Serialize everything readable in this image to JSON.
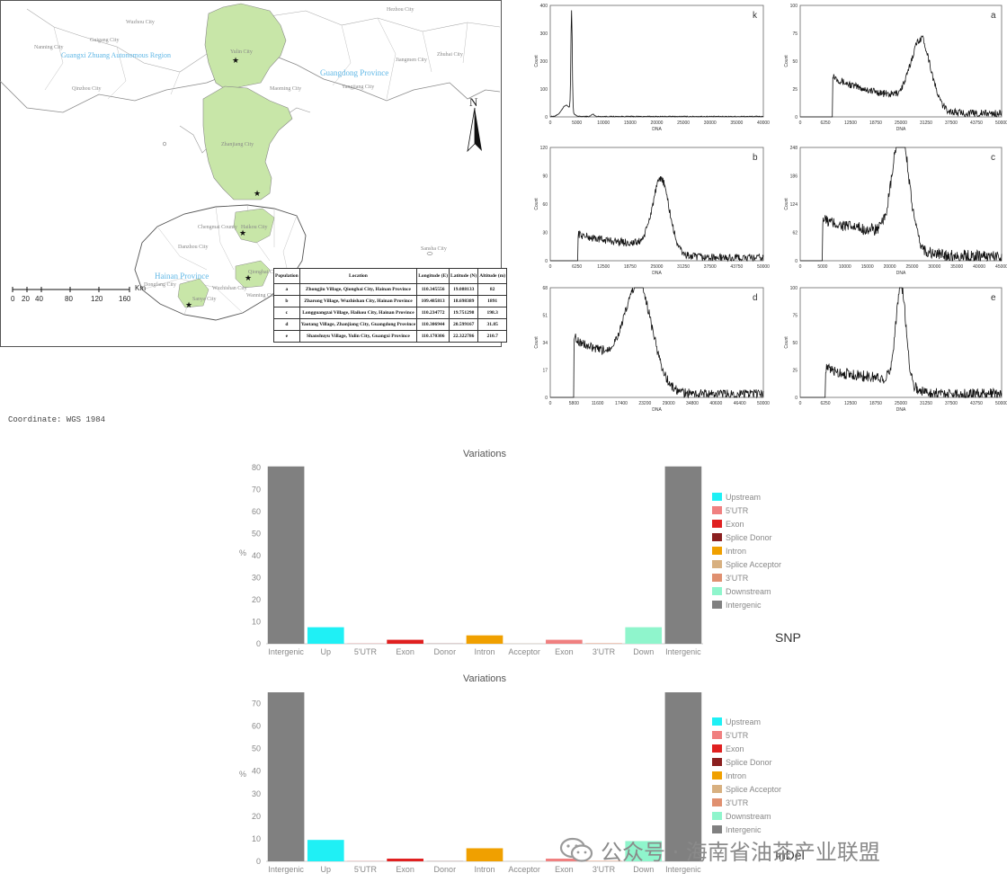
{
  "map": {
    "north_label": "N",
    "coordinate_note": "Coordinate: WGS 1984",
    "scale_unit": "Km",
    "scale_ticks": [
      "0",
      "20",
      "40",
      "80",
      "120",
      "160"
    ],
    "region_labels": [
      "Guangxi Zhuang Autonomous Region",
      "Guangdong Province",
      "Hainan Province"
    ],
    "city_labels": [
      "Wuzhou City",
      "Guigang City",
      "Hezhou City",
      "Nanning City",
      "Qinzhou City",
      "Yulin City",
      "Maoming City",
      "Zhanjiang City",
      "Haikou City",
      "Zhuhai City",
      "Jiangmen City",
      "Yangjiang City",
      "Danzhou City",
      "Sanya City",
      "Wanning City",
      "Qionghai City",
      "Chengmai County",
      "Dongfang City",
      "Wuzhishan City",
      "Sansha City"
    ],
    "table": {
      "headers": [
        "Population",
        "Location",
        "Longitude (E)",
        "Latitude (N)",
        "Altitude (m)"
      ],
      "rows": [
        [
          "a",
          "Zhongjiu Village, Qionghai City, Hainan Province",
          "110.345556",
          "19.088133",
          "82"
        ],
        [
          "b",
          "Zharong Village, Wuzhishan City, Hainan Province",
          "109.485813",
          "18.698389",
          "1891"
        ],
        [
          "c",
          "Longguangzai Village, Haikou City, Hainan Province",
          "110.234772",
          "19.751298",
          "198.3"
        ],
        [
          "d",
          "Yaotang Village, Zhanjiang City, Guangdong Province",
          "110.306944",
          "20.599167",
          "31.85"
        ],
        [
          "e",
          "Shanshuyu Village, Yulin City, Guangxi Province",
          "110.170306",
          "22.322786",
          "210.7"
        ]
      ]
    },
    "site_markers": [
      "a",
      "b",
      "c",
      "d",
      "e"
    ],
    "colors": {
      "land": "#c8e6a8",
      "border": "#777777",
      "water_label": "#5fb7e6"
    }
  },
  "chart_data": [
    {
      "type": "line",
      "id": "k",
      "panel_label": "k",
      "xlabel": "DNA",
      "ylabel": "Count",
      "xlim": [
        0,
        40000
      ],
      "ylim": [
        0,
        400
      ],
      "xticks": [
        "0",
        "5000",
        "10000",
        "15000",
        "20000",
        "25000",
        "30000",
        "35000",
        "40000"
      ],
      "yticks": [
        "0",
        "100",
        "200",
        "300",
        "400"
      ],
      "peaks": [
        {
          "x": 3000,
          "y": 40,
          "w": 1200
        },
        {
          "x": 4000,
          "y": 360,
          "w": 180
        },
        {
          "x": 8000,
          "y": 8,
          "w": 400
        }
      ]
    },
    {
      "type": "line",
      "id": "a",
      "panel_label": "a",
      "xlabel": "DNA",
      "ylabel": "Count",
      "xlim": [
        0,
        50000
      ],
      "ylim": [
        0,
        100
      ],
      "xticks": [
        "0",
        "6250",
        "12500",
        "18750",
        "25000",
        "31250",
        "37500",
        "43750",
        "50000"
      ],
      "yticks": [
        "0",
        "25",
        "50",
        "75",
        "100"
      ],
      "start": 8000,
      "end": 50000,
      "curve": {
        "plateau": 40,
        "plateau_end_drop": 15,
        "peak_x": 30000,
        "peak_y": 55,
        "peak_w": 3500,
        "tail": 3
      }
    },
    {
      "type": "line",
      "id": "b",
      "panel_label": "b",
      "xlabel": "DNA",
      "ylabel": "Count",
      "xlim": [
        0,
        50000
      ],
      "ylim": [
        0,
        120
      ],
      "xticks": [
        "0",
        "6250",
        "12500",
        "18750",
        "25000",
        "31250",
        "37500",
        "43750",
        "50000"
      ],
      "yticks": [
        "0",
        "30",
        "60",
        "90",
        "120"
      ],
      "start": 6500,
      "end": 50000,
      "curve": {
        "plateau": 30,
        "plateau_end_drop": 16,
        "peak_x": 26000,
        "peak_y": 70,
        "peak_w": 2800,
        "tail": 3
      }
    },
    {
      "type": "line",
      "id": "c",
      "panel_label": "c",
      "xlabel": "DNA",
      "ylabel": "Count",
      "xlim": [
        0,
        45000
      ],
      "ylim": [
        0,
        248
      ],
      "xticks": [
        "0",
        "5000",
        "10000",
        "15000",
        "20000",
        "25000",
        "30000",
        "35000",
        "40000",
        "45000"
      ],
      "yticks": [
        "0",
        "62",
        "124",
        "186",
        "248"
      ],
      "start": 5000,
      "end": 45000,
      "curve": {
        "plateau": 95,
        "plateau_end_drop": 60,
        "peak_x": 22500,
        "peak_y": 225,
        "peak_w": 2600,
        "tail": 10
      }
    },
    {
      "type": "line",
      "id": "d",
      "panel_label": "d",
      "xlabel": "DNA",
      "ylabel": "Count",
      "xlim": [
        0,
        50000
      ],
      "ylim": [
        0,
        68
      ],
      "xticks": [
        "0",
        "5800",
        "11600",
        "17400",
        "23200",
        "29000",
        "34800",
        "40600",
        "46400",
        "50000"
      ],
      "yticks": [
        "0",
        "17",
        "34",
        "51",
        "68"
      ],
      "start": 5500,
      "end": 50000,
      "curve": {
        "plateau": 40,
        "plateau_end_drop": 22,
        "peak_x": 21000,
        "peak_y": 50,
        "peak_w": 4500,
        "tail": 2
      }
    },
    {
      "type": "line",
      "id": "e",
      "panel_label": "e",
      "xlabel": "DNA",
      "ylabel": "Count",
      "xlim": [
        0,
        50000
      ],
      "ylim": [
        0,
        100
      ],
      "xticks": [
        "0",
        "6250",
        "12500",
        "18750",
        "25000",
        "31250",
        "37500",
        "43750",
        "50000"
      ],
      "yticks": [
        "0",
        "25",
        "50",
        "75",
        "100"
      ],
      "start": 6250,
      "end": 50000,
      "curve": {
        "plateau": 28,
        "plateau_end_drop": 16,
        "peak_x": 25000,
        "peak_y": 85,
        "peak_w": 1800,
        "tail": 3
      }
    },
    {
      "type": "bar",
      "id": "snp",
      "title": "Variations",
      "ylabel": "%",
      "tag": "SNP",
      "ylim": [
        0,
        80
      ],
      "yticks": [
        "0",
        "10",
        "20",
        "30",
        "40",
        "50",
        "60",
        "70",
        "80"
      ],
      "categories": [
        "Intergenic",
        "Up",
        "5'UTR",
        "Exon",
        "Donor",
        "Intron",
        "Acceptor",
        "Exon",
        "3'UTR",
        "Down",
        "Intergenic"
      ],
      "values": [
        80.5,
        7.5,
        0.1,
        1.8,
        0.05,
        3.8,
        0.05,
        1.8,
        0.2,
        7.5,
        80.5
      ],
      "bar_colors": [
        "#808080",
        "#1ff0f5",
        "#f08080",
        "#e02020",
        "#8b2020",
        "#f0a000",
        "#d8b080",
        "#f08080",
        "#e09070",
        "#8ff5cc",
        "#808080"
      ],
      "legend": [
        "Upstream",
        "5'UTR",
        "Exon",
        "Splice Donor",
        "Intron",
        "Splice Acceptor",
        "3'UTR",
        "Downstream",
        "Intergenic"
      ],
      "legend_colors": [
        "#1ff0f5",
        "#f08080",
        "#e02020",
        "#8b2020",
        "#f0a000",
        "#d8b080",
        "#e09070",
        "#8ff5cc",
        "#808080"
      ]
    },
    {
      "type": "bar",
      "id": "indel",
      "title": "Variations",
      "ylabel": "%",
      "tag": "InDel",
      "ylim": [
        0,
        75
      ],
      "yticks": [
        "0",
        "10",
        "20",
        "30",
        "40",
        "50",
        "60",
        "70"
      ],
      "categories": [
        "Intergenic",
        "Up",
        "5'UTR",
        "Exon",
        "Donor",
        "Intron",
        "Acceptor",
        "Exon",
        "3'UTR",
        "Down",
        "Intergenic"
      ],
      "values": [
        75,
        9.5,
        0.1,
        1.2,
        0.05,
        5.8,
        0.05,
        1.2,
        0.2,
        9.0,
        75
      ],
      "bar_colors": [
        "#808080",
        "#1ff0f5",
        "#f08080",
        "#e02020",
        "#8b2020",
        "#f0a000",
        "#d8b080",
        "#f08080",
        "#e09070",
        "#8ff5cc",
        "#808080"
      ],
      "legend": [
        "Upstream",
        "5'UTR",
        "Exon",
        "Splice Donor",
        "Intron",
        "Splice Acceptor",
        "3'UTR",
        "Downstream",
        "Intergenic"
      ],
      "legend_colors": [
        "#1ff0f5",
        "#f08080",
        "#e02020",
        "#8b2020",
        "#f0a000",
        "#d8b080",
        "#e09070",
        "#8ff5cc",
        "#808080"
      ]
    }
  ],
  "watermark": {
    "text": "公众号 · 海南省油茶产业联盟",
    "icon": "wechat-icon"
  }
}
